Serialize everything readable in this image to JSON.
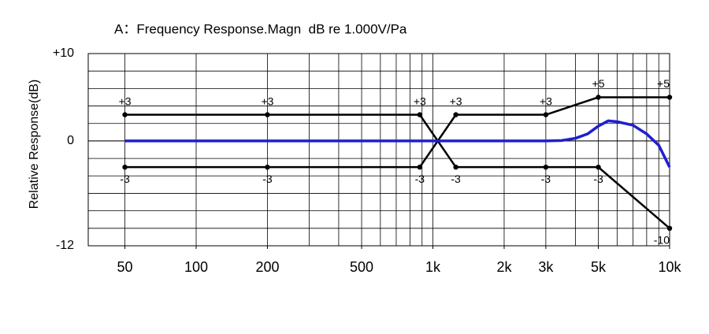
{
  "chart_data": {
    "type": "line",
    "title": "A：Frequency Response.Magn  dB re 1.000V/Pa",
    "ylabel": "Relative Response(dB)",
    "xscale": "log",
    "xlim": [
      35,
      10000
    ],
    "ylim": [
      -12,
      10
    ],
    "xticks": [
      50,
      100,
      200,
      500,
      {
        "value": 1000,
        "label": "1k"
      },
      {
        "value": 2000,
        "label": "2k"
      },
      {
        "value": 3000,
        "label": "3k"
      },
      {
        "value": 5000,
        "label": "5k"
      },
      {
        "value": 10000,
        "label": "10k"
      }
    ],
    "yticks": [
      {
        "value": 10,
        "label": "+10"
      },
      0,
      -12
    ],
    "xgrid": [
      50,
      100,
      200,
      300,
      400,
      500,
      600,
      700,
      800,
      900,
      1000,
      2000,
      3000,
      4000,
      5000,
      6000,
      7000,
      8000,
      9000,
      10000
    ],
    "ygrid": [
      -10,
      -8,
      -6,
      -4,
      -2,
      0,
      2,
      4,
      6,
      8
    ],
    "grid": true,
    "series": [
      {
        "color": "#000000",
        "markers": true,
        "x": [
          50,
          200,
          880,
          1250,
          3000,
          5000,
          10000
        ],
        "values": [
          3,
          3,
          3,
          -3,
          -3,
          -3,
          -10
        ],
        "value_labels": [
          "+3",
          "+3",
          "+3",
          "-3",
          "-3",
          "-3",
          "-10"
        ]
      },
      {
        "color": "#000000",
        "markers": true,
        "x": [
          50,
          200,
          880,
          1250,
          3000,
          5000,
          10000
        ],
        "values": [
          -3,
          -3,
          -3,
          3,
          3,
          5,
          5
        ],
        "value_labels": [
          "-3",
          "-3",
          "-3",
          "+3",
          "+3",
          "+5",
          "+5"
        ]
      },
      {
        "color": "#1f1fd0",
        "markers": false,
        "x": [
          50,
          200,
          500,
          1000,
          2000,
          3000,
          3500,
          4000,
          4500,
          5000,
          5500,
          6000,
          7000,
          8000,
          9000,
          10000
        ],
        "values": [
          0,
          0,
          0,
          0,
          0,
          0,
          0.05,
          0.3,
          0.8,
          1.7,
          2.3,
          2.2,
          1.8,
          0.8,
          -0.5,
          -3
        ]
      }
    ]
  }
}
